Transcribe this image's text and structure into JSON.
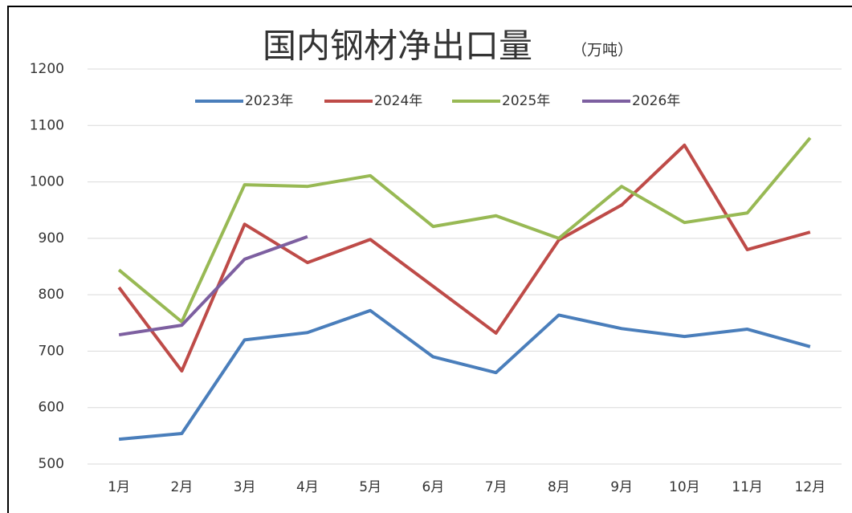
{
  "chart_data": {
    "type": "line",
    "title": "国内钢材净出口量",
    "subtitle": "（万吨）",
    "categories": [
      "1月",
      "2月",
      "3月",
      "4月",
      "5月",
      "6月",
      "7月",
      "8月",
      "9月",
      "10月",
      "11月",
      "12月"
    ],
    "series": [
      {
        "name": "2023年",
        "color": "#4a7ebb",
        "values": [
          544,
          554,
          720,
          733,
          772,
          690,
          662,
          764,
          740,
          726,
          739,
          708
        ]
      },
      {
        "name": "2024年",
        "color": "#be4b48",
        "values": [
          813,
          665,
          925,
          857,
          898,
          815,
          732,
          897,
          959,
          1065,
          880,
          911
        ]
      },
      {
        "name": "2025年",
        "color": "#98b954",
        "values": [
          844,
          752,
          995,
          992,
          1011,
          921,
          940,
          900,
          992,
          928,
          945,
          1078
        ]
      },
      {
        "name": "2026年",
        "color": "#7d5fa0",
        "values": [
          729,
          746,
          863,
          903,
          null,
          null,
          null,
          null,
          null,
          null,
          null,
          null
        ]
      }
    ],
    "ylim": [
      500,
      1200
    ],
    "yticks": [
      500,
      600,
      700,
      800,
      900,
      1000,
      1100,
      1200
    ],
    "grid": true,
    "legend": "top"
  }
}
